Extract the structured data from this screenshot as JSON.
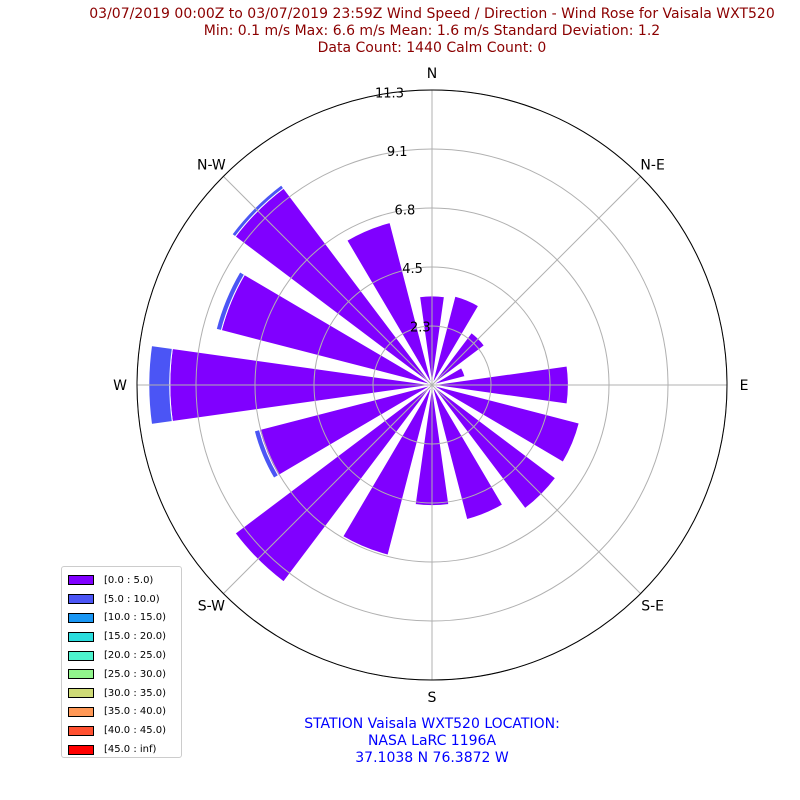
{
  "header": {
    "title_line1": "03/07/2019 00:00Z to 03/07/2019 23:59Z Wind Speed / Direction - Wind Rose for Vaisala WXT520",
    "title_line2": "Min: 0.1 m/s   Max: 6.6 m/s   Mean: 1.6 m/s  Standard Deviation: 1.2",
    "title_line3": "Data Count: 1440  Calm Count:  0"
  },
  "footer": {
    "station_line1": "STATION Vaisala WXT520 LOCATION:",
    "station_line2": "NASA LaRC 1196A",
    "station_line3": "37.1038 N 76.3872 W"
  },
  "colors": {
    "title": "#8b0000",
    "station": "#0000ff",
    "grid": "#b0b0b0"
  },
  "chart_data": {
    "type": "windrose",
    "directions": [
      "N",
      "NNE",
      "NE",
      "ENE",
      "E",
      "ESE",
      "SE",
      "SSE",
      "S",
      "SSW",
      "SW",
      "WSW",
      "W",
      "WNW",
      "NW",
      "NNW"
    ],
    "direction_angles_deg": [
      0,
      22.5,
      45,
      67.5,
      90,
      112.5,
      135,
      157.5,
      180,
      202.5,
      225,
      247.5,
      270,
      292.5,
      315,
      337.5
    ],
    "compass_labels": [
      {
        "label": "N",
        "angle": 0
      },
      {
        "label": "N-E",
        "angle": 45
      },
      {
        "label": "E",
        "angle": 90
      },
      {
        "label": "S-E",
        "angle": 135
      },
      {
        "label": "S",
        "angle": 180
      },
      {
        "label": "S-W",
        "angle": 225
      },
      {
        "label": "W",
        "angle": 270
      },
      {
        "label": "N-W",
        "angle": 315
      }
    ],
    "radial_ticks": [
      "2.3",
      "4.5",
      "6.8",
      "9.1",
      "11.3"
    ],
    "radial_tick_values": [
      2.25,
      4.5,
      6.75,
      9.0,
      11.25
    ],
    "rmax": 11.25,
    "series": [
      {
        "name": "[0.0 : 5.0)",
        "color": "#8000ff",
        "values": [
          3.4,
          3.5,
          2.5,
          1.3,
          5.2,
          5.8,
          5.9,
          5.3,
          4.6,
          6.7,
          9.4,
          6.8,
          10.0,
          8.3,
          9.4,
          6.4
        ]
      },
      {
        "name": "[5.0 : 10.0)",
        "color": "#4b55f5",
        "values": [
          0,
          0,
          0,
          0,
          0,
          0,
          0,
          0,
          0,
          0,
          0,
          0.2,
          0.8,
          0.2,
          0.15,
          0
        ]
      }
    ],
    "legend": [
      {
        "label": "[0.0 : 5.0)",
        "color": "#8000ff"
      },
      {
        "label": "[5.0 : 10.0)",
        "color": "#4b55f5"
      },
      {
        "label": "[10.0 : 15.0)",
        "color": "#1996f3"
      },
      {
        "label": "[15.0 : 20.0)",
        "color": "#2adddd"
      },
      {
        "label": "[20.0 : 25.0)",
        "color": "#4df3ce"
      },
      {
        "label": "[25.0 : 30.0)",
        "color": "#91f58c"
      },
      {
        "label": "[30.0 : 35.0)",
        "color": "#cfdb77"
      },
      {
        "label": "[35.0 : 40.0)",
        "color": "#ff9856"
      },
      {
        "label": "[40.0 : 45.0)",
        "color": "#ff5131"
      },
      {
        "label": "[45.0 : inf)",
        "color": "#ff0000"
      }
    ],
    "legend_position": "lower-left"
  }
}
